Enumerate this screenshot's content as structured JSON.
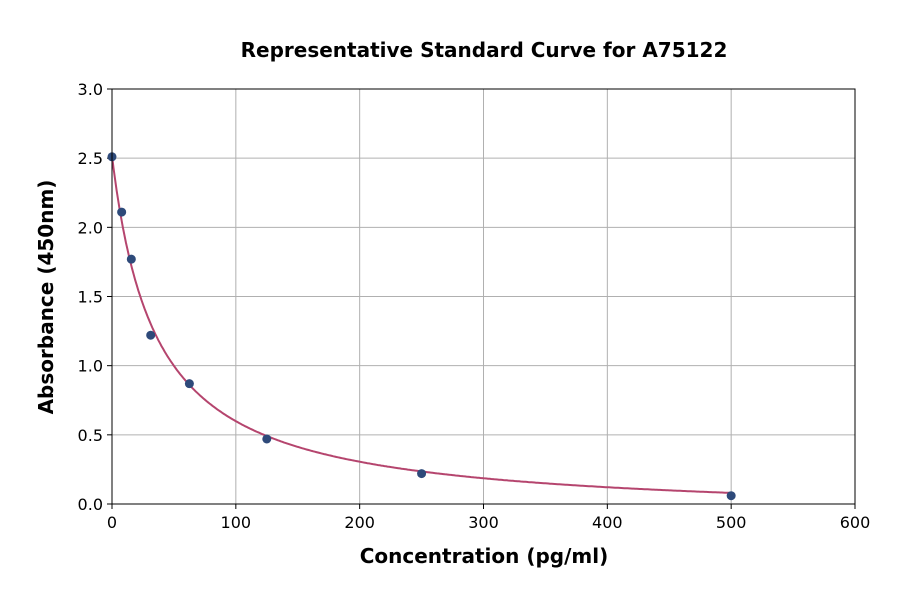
{
  "chart_data": {
    "type": "scatter",
    "title": "Representative Standard Curve for A75122",
    "xlabel": "Concentration (pg/ml)",
    "ylabel": "Absorbance (450nm)",
    "xlim": [
      0,
      600
    ],
    "ylim": [
      0,
      3.0
    ],
    "xticks": [
      "0",
      "100",
      "200",
      "300",
      "400",
      "500",
      "600"
    ],
    "yticks": [
      "0.0",
      "0.5",
      "1.0",
      "1.5",
      "2.0",
      "2.5",
      "3.0"
    ],
    "grid": true,
    "x": [
      0,
      7.8,
      15.6,
      31.25,
      62.5,
      125,
      250,
      500
    ],
    "y": [
      2.51,
      2.11,
      1.77,
      1.22,
      0.87,
      0.47,
      0.22,
      0.06
    ],
    "fit_curve": true,
    "colors": {
      "points": "#2e4a7a",
      "curve": "#b5456e",
      "grid": "#b0b0b0"
    }
  }
}
